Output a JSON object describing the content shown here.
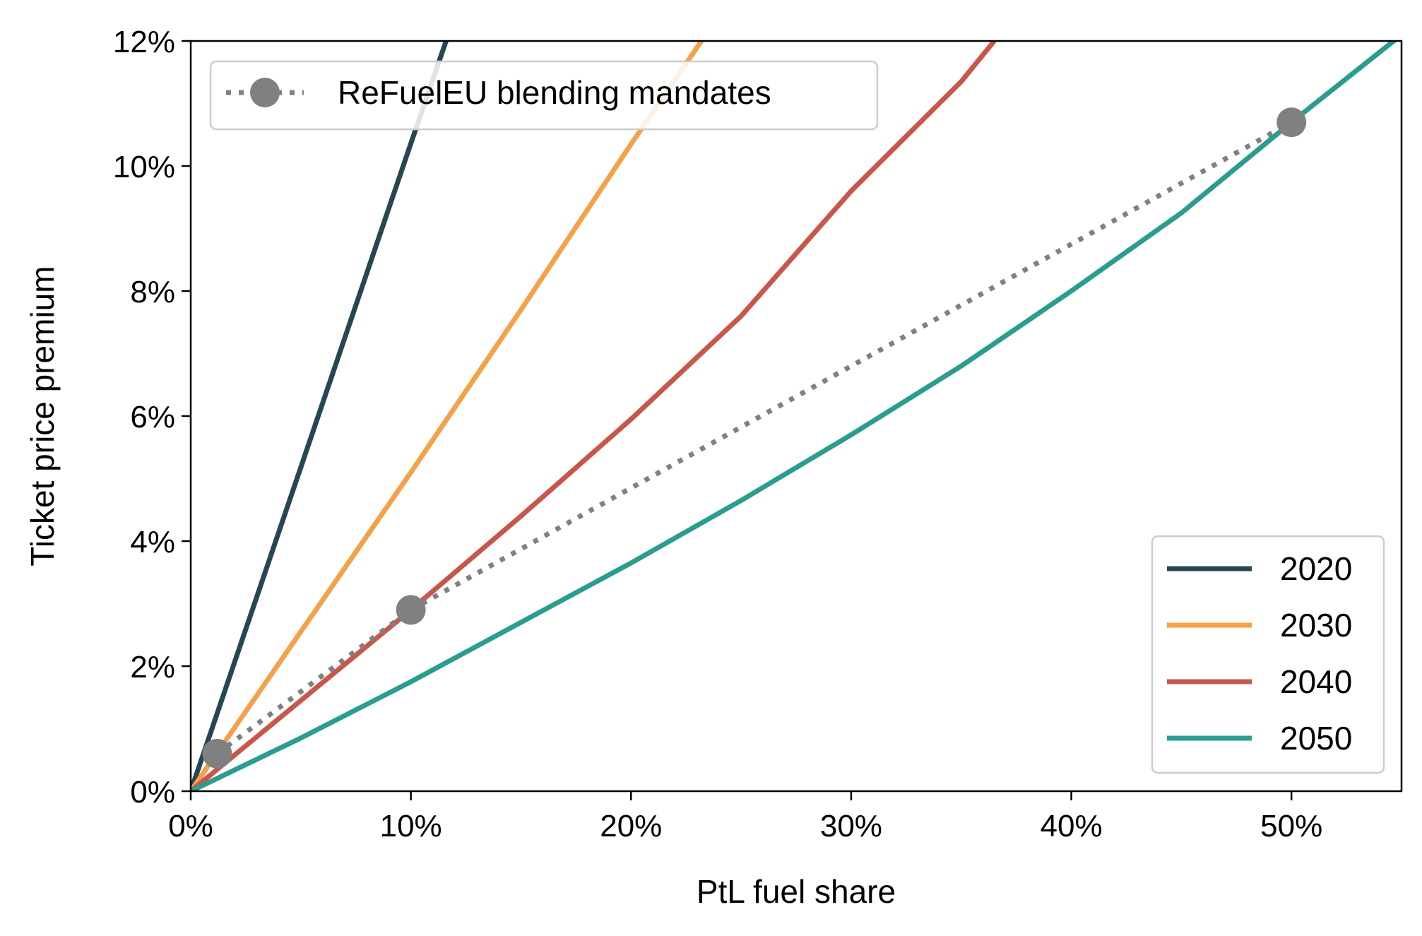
{
  "chart_data": {
    "type": "line",
    "xlabel": "PtL fuel share",
    "ylabel": "Ticket price premium",
    "xlim": [
      0,
      55
    ],
    "ylim": [
      0,
      12
    ],
    "x_ticks": [
      "0%",
      "10%",
      "20%",
      "30%",
      "40%",
      "50%"
    ],
    "y_ticks": [
      "0%",
      "2%",
      "4%",
      "6%",
      "8%",
      "10%",
      "12%"
    ],
    "grid": false,
    "series": [
      {
        "name": "2020",
        "color": "#264653",
        "x": [
          0,
          5,
          10,
          11.6
        ],
        "y": [
          0,
          5.18,
          10.36,
          12.0
        ]
      },
      {
        "name": "2030",
        "color": "#f4a24a",
        "x": [
          0,
          5,
          10,
          15,
          20,
          23.2
        ],
        "y": [
          0,
          2.55,
          5.1,
          7.7,
          10.35,
          12.0
        ]
      },
      {
        "name": "2040",
        "color": "#c8574a",
        "x": [
          0,
          5,
          10,
          15,
          20,
          25,
          30,
          35,
          36.5
        ],
        "y": [
          0,
          1.45,
          2.9,
          4.4,
          5.95,
          7.6,
          9.6,
          11.35,
          12.0
        ]
      },
      {
        "name": "2050",
        "color": "#2a9d8f",
        "x": [
          0,
          5,
          10,
          15,
          20,
          25,
          30,
          35,
          40,
          45,
          50,
          55
        ],
        "y": [
          0,
          0.85,
          1.75,
          2.7,
          3.65,
          4.65,
          5.7,
          6.8,
          8.0,
          9.25,
          10.7,
          12.1
        ]
      }
    ],
    "mandates": {
      "name": "ReFuelEU blending mandates",
      "color": "#808080",
      "x": [
        1.2,
        10,
        50
      ],
      "y": [
        0.6,
        2.9,
        10.7
      ]
    },
    "legends": {
      "mandates_position": "upper-left",
      "years_position": "lower-right"
    }
  }
}
